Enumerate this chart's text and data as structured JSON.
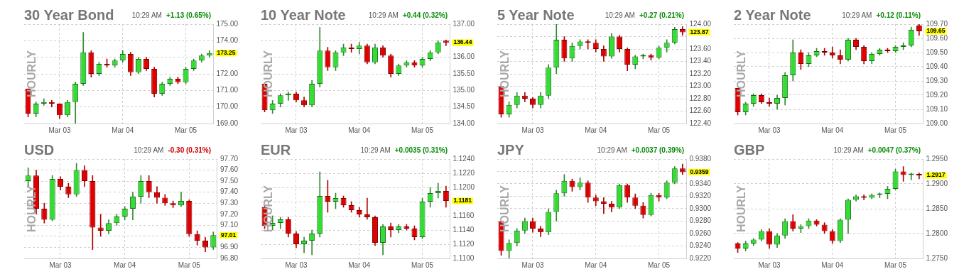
{
  "chart_data": [
    {
      "type": "candlestick",
      "title": "30 Year Bond",
      "ylabel": "HOURLY",
      "grid": true,
      "categories": [
        null,
        null,
        null,
        null,
        "Mar 03",
        null,
        null,
        null,
        null,
        null,
        null,
        null,
        "Mar 04",
        null,
        null,
        null,
        null,
        null,
        null,
        null,
        "Mar 05",
        null,
        null,
        null
      ],
      "ohlc": [
        [
          171.1,
          171.1,
          169.4,
          169.6
        ],
        [
          169.6,
          170.3,
          169.4,
          170.2
        ],
        [
          170.2,
          170.5,
          170.1,
          170.3
        ],
        [
          170.3,
          170.4,
          170.0,
          170.2
        ],
        [
          170.2,
          170.2,
          169.3,
          169.5
        ],
        [
          169.5,
          170.4,
          169.4,
          170.3
        ],
        [
          170.3,
          171.5,
          169.0,
          171.4
        ],
        [
          171.4,
          174.5,
          171.3,
          173.3
        ],
        [
          173.3,
          173.4,
          171.8,
          172.0
        ],
        [
          172.0,
          172.7,
          171.9,
          172.6
        ],
        [
          172.6,
          172.9,
          172.4,
          172.5
        ],
        [
          172.5,
          172.9,
          172.4,
          172.8
        ],
        [
          172.8,
          173.4,
          172.7,
          173.2
        ],
        [
          173.2,
          173.3,
          171.9,
          172.1
        ],
        [
          172.1,
          173.0,
          172.0,
          172.9
        ],
        [
          172.9,
          173.0,
          172.2,
          172.3
        ],
        [
          172.3,
          172.4,
          170.6,
          170.8
        ],
        [
          170.8,
          171.5,
          170.7,
          171.4
        ],
        [
          171.4,
          171.8,
          171.3,
          171.7
        ],
        [
          171.7,
          171.8,
          171.4,
          171.5
        ],
        [
          171.5,
          172.4,
          171.4,
          172.3
        ],
        [
          172.3,
          172.9,
          172.2,
          172.8
        ],
        [
          172.8,
          173.2,
          172.7,
          173.1
        ],
        [
          173.1,
          173.4,
          173.0,
          173.25
        ]
      ],
      "ylim": [
        169,
        175
      ],
      "yticks": [
        {
          "value": 169,
          "label": "169.00"
        },
        {
          "value": 170,
          "label": "170.00"
        },
        {
          "value": 171,
          "label": "171.00"
        },
        {
          "value": 172,
          "label": "172.00"
        },
        {
          "value": 173,
          "label": null
        },
        {
          "value": 174,
          "label": "174.00"
        },
        {
          "value": 175,
          "label": "175.00"
        }
      ],
      "annotations": [
        "10:29 AM",
        "+1.13 (0.65%)",
        "173.25"
      ]
    },
    {
      "type": "candlestick",
      "title": "10 Year Note",
      "ylabel": "HOURLY",
      "grid": true,
      "categories": [
        null,
        null,
        null,
        null,
        "Mar 03",
        null,
        null,
        null,
        null,
        null,
        null,
        null,
        "Mar 04",
        null,
        null,
        null,
        null,
        null,
        null,
        null,
        "Mar 05",
        null,
        null,
        null
      ],
      "ohlc": [
        [
          135.2,
          135.2,
          134.35,
          134.4
        ],
        [
          134.4,
          134.7,
          134.3,
          134.6
        ],
        [
          134.6,
          134.9,
          134.5,
          134.85
        ],
        [
          134.85,
          134.95,
          134.7,
          134.9
        ],
        [
          134.9,
          134.95,
          134.65,
          134.7
        ],
        [
          134.7,
          134.8,
          134.5,
          134.55
        ],
        [
          134.55,
          135.3,
          134.5,
          135.2
        ],
        [
          135.2,
          136.9,
          135.1,
          136.2
        ],
        [
          136.2,
          136.3,
          135.6,
          135.7
        ],
        [
          135.7,
          136.2,
          135.6,
          136.15
        ],
        [
          136.15,
          136.4,
          136.05,
          136.3
        ],
        [
          136.3,
          136.4,
          136.15,
          136.25
        ],
        [
          136.25,
          136.45,
          136.1,
          136.35
        ],
        [
          136.35,
          136.4,
          135.8,
          135.85
        ],
        [
          135.85,
          136.4,
          135.8,
          136.3
        ],
        [
          136.3,
          136.35,
          136.0,
          136.05
        ],
        [
          136.05,
          136.1,
          135.4,
          135.5
        ],
        [
          135.5,
          135.8,
          135.45,
          135.75
        ],
        [
          135.75,
          135.9,
          135.7,
          135.85
        ],
        [
          135.85,
          135.9,
          135.7,
          135.75
        ],
        [
          135.75,
          136.0,
          135.7,
          135.95
        ],
        [
          135.95,
          136.2,
          135.9,
          136.15
        ],
        [
          136.15,
          136.5,
          136.1,
          136.45
        ],
        [
          136.5,
          136.52,
          136.35,
          136.44
        ]
      ],
      "ylim": [
        134,
        137
      ],
      "yticks": [
        {
          "value": 134,
          "label": "134.00"
        },
        {
          "value": 134.5,
          "label": "134.50"
        },
        {
          "value": 135,
          "label": "135.00"
        },
        {
          "value": 135.5,
          "label": "135.50"
        },
        {
          "value": 136,
          "label": "136.00"
        },
        {
          "value": 136.5,
          "label": null
        },
        {
          "value": 137,
          "label": "137.00"
        }
      ],
      "annotations": [
        "10:29 AM",
        "+0.44 (0.32%)",
        "136.44"
      ]
    },
    {
      "type": "candlestick",
      "title": "5 Year Note",
      "ylabel": "HOURLY",
      "grid": true,
      "categories": [
        null,
        null,
        null,
        null,
        "Mar 03",
        null,
        null,
        null,
        null,
        null,
        null,
        null,
        "Mar 04",
        null,
        null,
        null,
        null,
        null,
        null,
        null,
        "Mar 05",
        null,
        null,
        null
      ],
      "ohlc": [
        [
          123.0,
          123.0,
          122.5,
          122.55
        ],
        [
          122.55,
          122.75,
          122.5,
          122.7
        ],
        [
          122.7,
          122.9,
          122.65,
          122.85
        ],
        [
          122.85,
          122.9,
          122.75,
          122.8
        ],
        [
          122.8,
          122.82,
          122.65,
          122.7
        ],
        [
          122.7,
          122.9,
          122.65,
          122.85
        ],
        [
          122.85,
          123.35,
          122.8,
          123.3
        ],
        [
          123.3,
          124.0,
          123.2,
          123.75
        ],
        [
          123.75,
          123.8,
          123.4,
          123.45
        ],
        [
          123.45,
          123.7,
          123.4,
          123.65
        ],
        [
          123.65,
          123.75,
          123.6,
          123.72
        ],
        [
          123.72,
          123.75,
          123.6,
          123.7
        ],
        [
          123.7,
          123.75,
          123.55,
          123.6
        ],
        [
          123.6,
          123.65,
          123.4,
          123.48
        ],
        [
          123.48,
          123.85,
          123.45,
          123.8
        ],
        [
          123.8,
          123.82,
          123.55,
          123.6
        ],
        [
          123.6,
          123.62,
          123.25,
          123.35
        ],
        [
          123.35,
          123.5,
          123.28,
          123.48
        ],
        [
          123.48,
          123.52,
          123.44,
          123.5
        ],
        [
          123.5,
          123.52,
          123.42,
          123.46
        ],
        [
          123.46,
          123.65,
          123.44,
          123.62
        ],
        [
          123.62,
          123.75,
          123.55,
          123.7
        ],
        [
          123.7,
          123.95,
          123.68,
          123.92
        ],
        [
          123.92,
          123.96,
          123.82,
          123.87
        ]
      ],
      "ylim": [
        122.4,
        124
      ],
      "yticks": [
        {
          "value": 122.4,
          "label": "122.40"
        },
        {
          "value": 122.6,
          "label": "122.60"
        },
        {
          "value": 122.8,
          "label": "122.80"
        },
        {
          "value": 123,
          "label": "123.00"
        },
        {
          "value": 123.2,
          "label": "123.20"
        },
        {
          "value": 123.4,
          "label": "123.40"
        },
        {
          "value": 123.6,
          "label": "123.60"
        },
        {
          "value": 123.8,
          "label": null
        },
        {
          "value": 124,
          "label": "124.00"
        }
      ],
      "annotations": [
        "10:29 AM",
        "+0.27 (0.21%)",
        "123.87"
      ]
    },
    {
      "type": "candlestick",
      "title": "2 Year Note",
      "ylabel": "HOURLY",
      "grid": true,
      "categories": [
        null,
        null,
        null,
        null,
        "Mar 03",
        null,
        null,
        null,
        null,
        null,
        null,
        null,
        "Mar 04",
        null,
        null,
        null,
        null,
        null,
        null,
        null,
        "Mar 05",
        null,
        null,
        null
      ],
      "ohlc": [
        [
          109.25,
          109.25,
          109.06,
          109.08
        ],
        [
          109.08,
          109.15,
          109.06,
          109.14
        ],
        [
          109.14,
          109.21,
          109.12,
          109.2
        ],
        [
          109.2,
          109.21,
          109.14,
          109.15
        ],
        [
          109.15,
          109.18,
          109.12,
          109.14
        ],
        [
          109.14,
          109.2,
          109.1,
          109.18
        ],
        [
          109.18,
          109.36,
          109.13,
          109.34
        ],
        [
          109.34,
          109.59,
          109.3,
          109.5
        ],
        [
          109.5,
          109.52,
          109.38,
          109.42
        ],
        [
          109.42,
          109.5,
          109.4,
          109.48
        ],
        [
          109.48,
          109.53,
          109.47,
          109.51
        ],
        [
          109.51,
          109.53,
          109.48,
          109.5
        ],
        [
          109.5,
          109.54,
          109.46,
          109.48
        ],
        [
          109.48,
          109.52,
          109.42,
          109.45
        ],
        [
          109.45,
          109.6,
          109.44,
          109.59
        ],
        [
          109.59,
          109.6,
          109.52,
          109.54
        ],
        [
          109.54,
          109.55,
          109.42,
          109.44
        ],
        [
          109.44,
          109.5,
          109.42,
          109.49
        ],
        [
          109.49,
          109.53,
          109.48,
          109.52
        ],
        [
          109.52,
          109.53,
          109.5,
          109.51
        ],
        [
          109.51,
          109.55,
          109.5,
          109.54
        ],
        [
          109.54,
          109.57,
          109.52,
          109.55
        ],
        [
          109.55,
          109.68,
          109.54,
          109.66
        ],
        [
          109.69,
          109.7,
          109.62,
          109.65
        ]
      ],
      "ylim": [
        109,
        109.7
      ],
      "yticks": [
        {
          "value": 109,
          "label": "109.00"
        },
        {
          "value": 109.1,
          "label": "109.10"
        },
        {
          "value": 109.2,
          "label": "109.20"
        },
        {
          "value": 109.3,
          "label": "109.30"
        },
        {
          "value": 109.4,
          "label": "109.40"
        },
        {
          "value": 109.5,
          "label": "109.50"
        },
        {
          "value": 109.6,
          "label": "109.60"
        },
        {
          "value": 109.7,
          "label": "109.70"
        }
      ],
      "annotations": [
        "10:29 AM",
        "+0.12 (0.11%)",
        "109.65"
      ]
    },
    {
      "type": "candlestick",
      "title": "USD",
      "ylabel": "HOURLY",
      "grid": true,
      "categories": [
        null,
        null,
        null,
        null,
        "Mar 03",
        null,
        null,
        null,
        null,
        null,
        null,
        null,
        "Mar 04",
        null,
        null,
        null,
        null,
        null,
        null,
        null,
        "Mar 05",
        null,
        null,
        null
      ],
      "ohlc": [
        [
          97.5,
          97.62,
          97.45,
          97.55
        ],
        [
          97.55,
          97.6,
          97.2,
          97.25
        ],
        [
          97.25,
          97.3,
          97.12,
          97.15
        ],
        [
          97.15,
          97.55,
          97.14,
          97.52
        ],
        [
          97.52,
          97.54,
          97.42,
          97.45
        ],
        [
          97.45,
          97.48,
          97.35,
          97.38
        ],
        [
          97.38,
          97.66,
          97.36,
          97.6
        ],
        [
          97.6,
          97.64,
          97.45,
          97.5
        ],
        [
          97.5,
          97.55,
          96.88,
          97.08
        ],
        [
          97.08,
          97.2,
          97.0,
          97.05
        ],
        [
          97.05,
          97.15,
          97.02,
          97.12
        ],
        [
          97.12,
          97.2,
          97.1,
          97.18
        ],
        [
          97.18,
          97.27,
          97.15,
          97.25
        ],
        [
          97.25,
          97.4,
          97.15,
          97.36
        ],
        [
          97.36,
          97.55,
          97.3,
          97.5
        ],
        [
          97.5,
          97.55,
          97.35,
          97.4
        ],
        [
          97.4,
          97.45,
          97.3,
          97.35
        ],
        [
          97.35,
          97.38,
          97.28,
          97.3
        ],
        [
          97.3,
          97.32,
          97.26,
          97.28
        ],
        [
          97.28,
          97.4,
          97.27,
          97.32
        ],
        [
          97.32,
          97.33,
          97.0,
          97.02
        ],
        [
          97.02,
          97.05,
          96.92,
          96.96
        ],
        [
          96.96,
          96.99,
          96.86,
          96.9
        ],
        [
          96.9,
          97.04,
          96.88,
          97.01
        ]
      ],
      "ylim": [
        96.8,
        97.7
      ],
      "yticks": [
        {
          "value": 96.8,
          "label": "96.80"
        },
        {
          "value": 96.9,
          "label": "96.90"
        },
        {
          "value": 97,
          "label": null
        },
        {
          "value": 97.1,
          "label": "97.10"
        },
        {
          "value": 97.2,
          "label": "97.20"
        },
        {
          "value": 97.3,
          "label": "97.30"
        },
        {
          "value": 97.4,
          "label": "97.40"
        },
        {
          "value": 97.5,
          "label": "97.50"
        },
        {
          "value": 97.6,
          "label": "97.60"
        },
        {
          "value": 97.7,
          "label": "97.70"
        }
      ],
      "annotations": [
        "10:29 AM",
        "-0.30 (0.31%)",
        "97.01"
      ]
    },
    {
      "type": "candlestick",
      "title": "EUR",
      "ylabel": "HOURLY",
      "grid": true,
      "categories": [
        null,
        null,
        null,
        null,
        "Mar 03",
        null,
        null,
        null,
        null,
        null,
        null,
        null,
        "Mar 04",
        null,
        null,
        null,
        null,
        null,
        null,
        null,
        "Mar 05",
        null,
        null,
        null
      ],
      "ohlc": [
        [
          1.1172,
          1.1175,
          1.1142,
          1.1146
        ],
        [
          1.1146,
          1.116,
          1.114,
          1.115
        ],
        [
          1.115,
          1.1158,
          1.1142,
          1.1155
        ],
        [
          1.1155,
          1.1158,
          1.113,
          1.1135
        ],
        [
          1.1135,
          1.1138,
          1.1115,
          1.112
        ],
        [
          1.112,
          1.113,
          1.1108,
          1.1125
        ],
        [
          1.1125,
          1.114,
          1.1105,
          1.1135
        ],
        [
          1.1135,
          1.1222,
          1.113,
          1.1188
        ],
        [
          1.1188,
          1.121,
          1.1165,
          1.118
        ],
        [
          1.118,
          1.1192,
          1.117,
          1.1185
        ],
        [
          1.1185,
          1.1188,
          1.1172,
          1.1175
        ],
        [
          1.1175,
          1.118,
          1.1165,
          1.1168
        ],
        [
          1.1168,
          1.1172,
          1.1158,
          1.1162
        ],
        [
          1.1162,
          1.1185,
          1.1155,
          1.1158
        ],
        [
          1.1158,
          1.116,
          1.1118,
          1.1122
        ],
        [
          1.1122,
          1.1148,
          1.1105,
          1.1145
        ],
        [
          1.1145,
          1.115,
          1.113,
          1.114
        ],
        [
          1.114,
          1.1148,
          1.1136,
          1.1145
        ],
        [
          1.1145,
          1.1148,
          1.114,
          1.1142
        ],
        [
          1.1142,
          1.1146,
          1.1126,
          1.113
        ],
        [
          1.113,
          1.1185,
          1.1128,
          1.118
        ],
        [
          1.118,
          1.12,
          1.1172,
          1.1192
        ],
        [
          1.1192,
          1.1206,
          1.1185,
          1.1195
        ],
        [
          1.1195,
          1.1202,
          1.1172,
          1.1181
        ]
      ],
      "ylim": [
        1.11,
        1.124
      ],
      "yticks": [
        {
          "value": 1.11,
          "label": "1.1100"
        },
        {
          "value": 1.112,
          "label": "1.1120"
        },
        {
          "value": 1.114,
          "label": "1.1140"
        },
        {
          "value": 1.116,
          "label": "1.1160"
        },
        {
          "value": 1.118,
          "label": null
        },
        {
          "value": 1.12,
          "label": "1.1200"
        },
        {
          "value": 1.122,
          "label": "1.1220"
        },
        {
          "value": 1.124,
          "label": "1.1240"
        }
      ],
      "annotations": [
        "10:29 AM",
        "+0.0035 (0.31%)",
        "1.1181"
      ]
    },
    {
      "type": "candlestick",
      "title": "JPY",
      "ylabel": "HOURLY",
      "grid": true,
      "categories": [
        null,
        null,
        null,
        null,
        "Mar 03",
        null,
        null,
        null,
        null,
        null,
        null,
        null,
        "Mar 04",
        null,
        null,
        null,
        null,
        null,
        null,
        null,
        "Mar 05",
        null,
        null,
        null
      ],
      "ohlc": [
        [
          0.928,
          0.928,
          0.9225,
          0.9232
        ],
        [
          0.9232,
          0.925,
          0.922,
          0.9245
        ],
        [
          0.9245,
          0.9268,
          0.924,
          0.9265
        ],
        [
          0.9265,
          0.9285,
          0.926,
          0.928
        ],
        [
          0.928,
          0.9285,
          0.9262,
          0.9268
        ],
        [
          0.9268,
          0.9272,
          0.9255,
          0.9262
        ],
        [
          0.9262,
          0.93,
          0.9258,
          0.9295
        ],
        [
          0.9295,
          0.933,
          0.928,
          0.9325
        ],
        [
          0.9325,
          0.9355,
          0.932,
          0.9345
        ],
        [
          0.9345,
          0.9348,
          0.9328,
          0.9335
        ],
        [
          0.9335,
          0.935,
          0.933,
          0.9342
        ],
        [
          0.9342,
          0.9345,
          0.931,
          0.9318
        ],
        [
          0.9318,
          0.9322,
          0.9305,
          0.9312
        ],
        [
          0.9312,
          0.9318,
          0.9292,
          0.9308
        ],
        [
          0.9308,
          0.9312,
          0.9295,
          0.9302
        ],
        [
          0.9302,
          0.934,
          0.93,
          0.9338
        ],
        [
          0.9338,
          0.934,
          0.931,
          0.9318
        ],
        [
          0.9318,
          0.9324,
          0.93,
          0.9305
        ],
        [
          0.9305,
          0.931,
          0.9285,
          0.929
        ],
        [
          0.929,
          0.9325,
          0.9288,
          0.9322
        ],
        [
          0.9322,
          0.9325,
          0.9312,
          0.9318
        ],
        [
          0.9318,
          0.9345,
          0.9316,
          0.9342
        ],
        [
          0.9342,
          0.9368,
          0.934,
          0.9365
        ],
        [
          0.9365,
          0.9372,
          0.9355,
          0.9359
        ]
      ],
      "ylim": [
        0.922,
        0.938
      ],
      "yticks": [
        {
          "value": 0.922,
          "label": "0.9220"
        },
        {
          "value": 0.924,
          "label": "0.9240"
        },
        {
          "value": 0.926,
          "label": "0.9260"
        },
        {
          "value": 0.928,
          "label": "0.9280"
        },
        {
          "value": 0.93,
          "label": "0.9300"
        },
        {
          "value": 0.932,
          "label": "0.9320"
        },
        {
          "value": 0.934,
          "label": "0.9340"
        },
        {
          "value": 0.936,
          "label": null
        },
        {
          "value": 0.938,
          "label": "0.9380"
        }
      ],
      "annotations": [
        "10:29 AM",
        "+0.0037 (0.39%)",
        "0.9359"
      ]
    },
    {
      "type": "candlestick",
      "title": "GBP",
      "ylabel": "HOURLY",
      "grid": true,
      "categories": [
        null,
        null,
        null,
        null,
        "Mar 03",
        null,
        null,
        null,
        null,
        null,
        null,
        null,
        "Mar 04",
        null,
        null,
        null,
        null,
        null,
        null,
        null,
        "Mar 05",
        null,
        null,
        null
      ],
      "ohlc": [
        [
          1.278,
          1.2782,
          1.2762,
          1.277
        ],
        [
          1.277,
          1.2785,
          1.2765,
          1.278
        ],
        [
          1.278,
          1.279,
          1.2776,
          1.2788
        ],
        [
          1.2788,
          1.2808,
          1.2785,
          1.2805
        ],
        [
          1.2805,
          1.281,
          1.277,
          1.2778
        ],
        [
          1.2778,
          1.28,
          1.2772,
          1.2796
        ],
        [
          1.2796,
          1.283,
          1.279,
          1.2825
        ],
        [
          1.2825,
          1.2838,
          1.2805,
          1.281
        ],
        [
          1.281,
          1.2818,
          1.2802,
          1.2815
        ],
        [
          1.2815,
          1.283,
          1.281,
          1.2826
        ],
        [
          1.2826,
          1.2828,
          1.2815,
          1.2818
        ],
        [
          1.2818,
          1.2822,
          1.28,
          1.2805
        ],
        [
          1.2805,
          1.2808,
          1.278,
          1.2785
        ],
        [
          1.2785,
          1.283,
          1.2782,
          1.2828
        ],
        [
          1.2828,
          1.287,
          1.28,
          1.2868
        ],
        [
          1.2868,
          1.2878,
          1.2865,
          1.2875
        ],
        [
          1.2875,
          1.2878,
          1.2868,
          1.2872
        ],
        [
          1.2872,
          1.288,
          1.287,
          1.2878
        ],
        [
          1.2878,
          1.2882,
          1.2872,
          1.288
        ],
        [
          1.288,
          1.2895,
          1.287,
          1.289
        ],
        [
          1.289,
          1.293,
          1.2888,
          1.2925
        ],
        [
          1.2925,
          1.2935,
          1.2905,
          1.2918
        ],
        [
          1.2918,
          1.2922,
          1.2908,
          1.292
        ],
        [
          1.292,
          1.2922,
          1.291,
          1.2917
        ]
      ],
      "ylim": [
        1.275,
        1.295
      ],
      "yticks": [
        {
          "value": 1.275,
          "label": "1.2750"
        },
        {
          "value": 1.28,
          "label": "1.2800"
        },
        {
          "value": 1.285,
          "label": "1.2850"
        },
        {
          "value": 1.29,
          "label": "1.2900"
        },
        {
          "value": 1.295,
          "label": "1.2950"
        }
      ],
      "annotations": [
        "10:29 AM",
        "+0.0047 (0.37%)",
        "1.2917"
      ]
    }
  ]
}
